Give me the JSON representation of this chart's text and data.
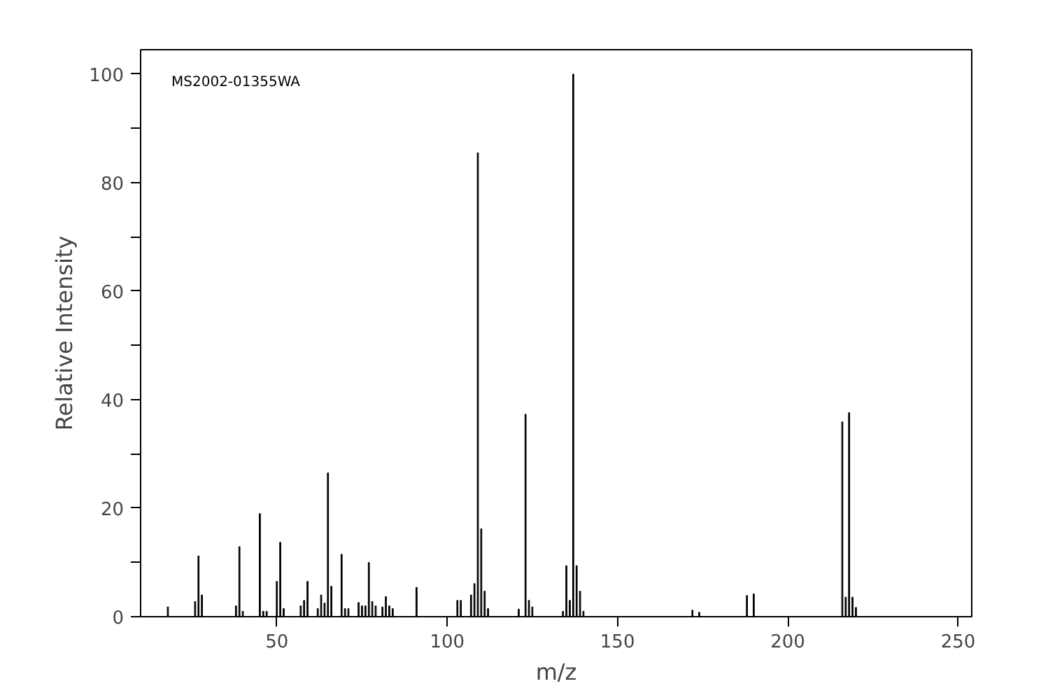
{
  "chart_data": {
    "type": "bar",
    "xlabel": "m/z",
    "ylabel": "Relative Intensity",
    "annotations": [
      "MS2002-01355WA"
    ],
    "x": [
      18,
      26,
      27,
      28,
      38,
      39,
      40,
      45,
      46,
      47,
      50,
      51,
      52,
      57,
      58,
      59,
      62,
      63,
      64,
      65,
      66,
      69,
      70,
      71,
      74,
      75,
      76,
      77,
      78,
      79,
      81,
      82,
      83,
      84,
      91,
      103,
      104,
      107,
      108,
      109,
      110,
      111,
      112,
      121,
      123,
      124,
      125,
      134,
      135,
      136,
      137,
      138,
      139,
      140,
      172,
      174,
      188,
      190,
      216,
      217,
      218,
      219,
      220
    ],
    "values": [
      1.8,
      2.8,
      11.2,
      4,
      2,
      12.9,
      1,
      19,
      1,
      1,
      6.5,
      13.7,
      1.5,
      2,
      3,
      6.5,
      1.5,
      4,
      2.5,
      26.5,
      5.6,
      11.5,
      1.5,
      1.5,
      2.6,
      2,
      2,
      10,
      2.8,
      2,
      1.8,
      3.7,
      2,
      1.5,
      5.4,
      3,
      3,
      4,
      6.1,
      85.5,
      16.2,
      4.7,
      1.5,
      1.4,
      37.3,
      3,
      1.8,
      1,
      9.4,
      3,
      100,
      9.4,
      4.7,
      1,
      1.2,
      0.8,
      3.9,
      4.2,
      35.9,
      3.6,
      37.6,
      3.6,
      1.7
    ],
    "color": "#000000",
    "xlim": [
      10,
      254
    ],
    "xticks": [
      50,
      100,
      150,
      200,
      250
    ],
    "ylim": [
      0,
      104.5
    ],
    "yticks": [
      0,
      {
        "value": 10,
        "label": null
      },
      20,
      {
        "value": 30,
        "label": null
      },
      40,
      {
        "value": 50,
        "label": null
      },
      60,
      {
        "value": 70,
        "label": null
      },
      80,
      {
        "value": 90,
        "label": null
      },
      100
    ],
    "grid": false
  }
}
